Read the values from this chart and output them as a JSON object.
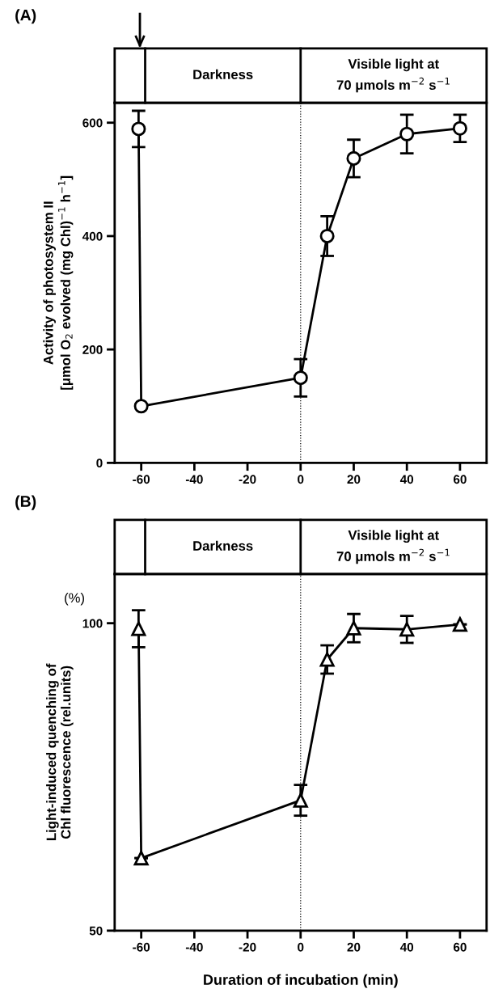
{
  "chart_data": [
    {
      "type": "line",
      "title": "(A)",
      "ylabel": "Activity of photosystem II\n[μmol O$_{2}$ evolved (mg Chl)$^{−1}$ h$^{−1}$]",
      "x": [
        -61,
        -60,
        0,
        10,
        20,
        40,
        60
      ],
      "series": [
        {
          "color": "#000000",
          "values": [
            589,
            100,
            150,
            400,
            537,
            580,
            590
          ],
          "errors": [
            32,
            null,
            33,
            35,
            33,
            34,
            24
          ]
        }
      ],
      "xlim": [
        -70,
        70
      ],
      "xticks": [
        -60,
        -40,
        -20,
        0,
        20,
        40,
        60
      ],
      "ylim": [
        0,
        635
      ],
      "yticks": [
        0,
        200,
        400,
        600
      ],
      "marker": "circle",
      "line_style": "solid",
      "annotations": [
        "Darkness",
        "Visible light at\n70 μmols m$^{−2}$ s$^{−1}$"
      ],
      "ref_lines": [
        {
          "axis": "x",
          "value": 0,
          "color": "#000000",
          "line_style": "dotted"
        }
      ]
    },
    {
      "type": "line",
      "title": "(B)",
      "xlabel": "Duration of incubation (min)",
      "ylabel": "Light-induced quenching of\nChl fluorescence (rel.units)",
      "x": [
        -61,
        -60,
        0,
        10,
        20,
        40,
        60
      ],
      "series": [
        {
          "color": "#000000",
          "values": [
            99.1,
            61.8,
            71.2,
            94.1,
            99.2,
            99,
            99.8
          ],
          "errors": [
            3,
            null,
            2.5,
            2.3,
            2.3,
            2.2,
            null
          ]
        }
      ],
      "xlim": [
        -70,
        70
      ],
      "xticks": [
        -60,
        -40,
        -20,
        0,
        20,
        40,
        60
      ],
      "ylim": [
        50,
        108
      ],
      "yticks": [
        50,
        100
      ],
      "marker": "triangle",
      "line_style": "solid",
      "annotations": [
        "Darkness",
        "Visible light at\n70 μmols m$^{−2}$ s$^{−1}$",
        "(%)"
      ],
      "ref_lines": [
        {
          "axis": "x",
          "value": 0,
          "color": "#000000",
          "line_style": "dotted"
        }
      ]
    }
  ]
}
